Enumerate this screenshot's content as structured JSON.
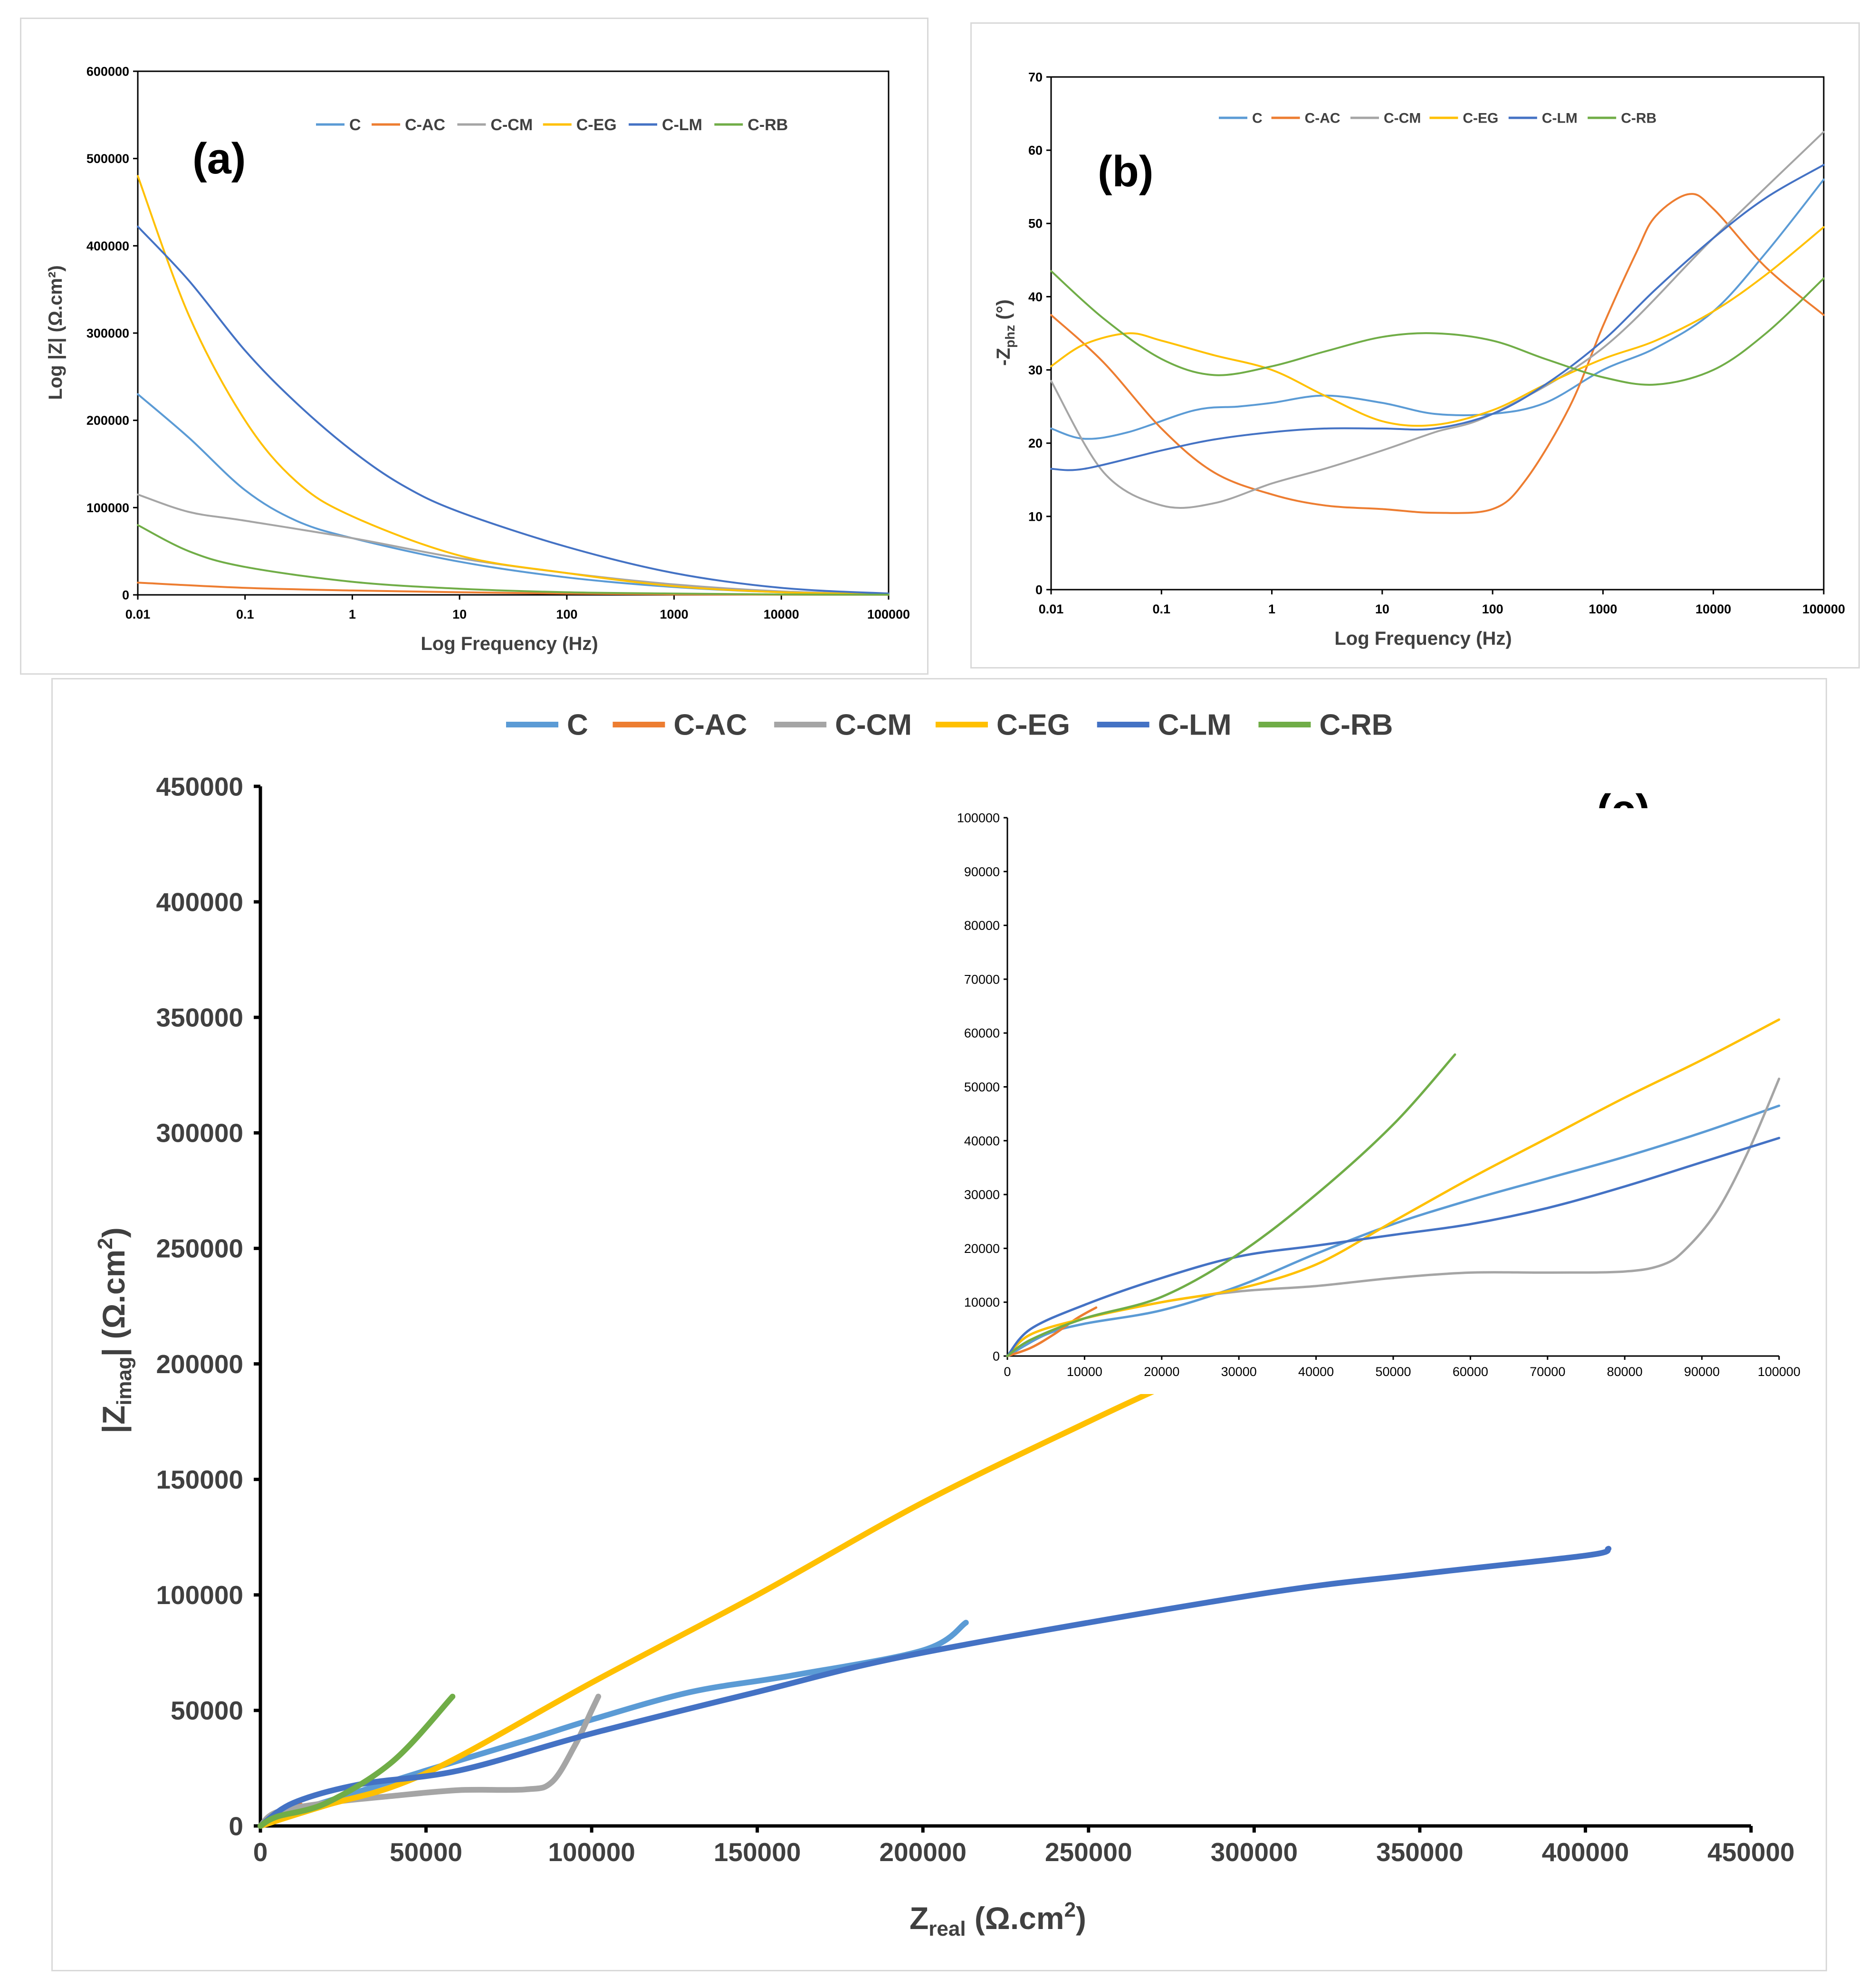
{
  "colors": {
    "C": "#5b9bd5",
    "C-AC": "#ed7d31",
    "C-CM": "#a5a5a5",
    "C-EG": "#ffc000",
    "C-LM": "#4472c4",
    "C-RB": "#70ad47"
  },
  "chart_data": [
    {
      "id": "a",
      "type": "line",
      "panel_label": "(a)",
      "title": "",
      "xlabel": "Log Frequency (Hz)",
      "ylabel": "Log |Z| (Ω.cm²)",
      "xscale": "log",
      "xlim": [
        0.01,
        100000
      ],
      "ylim": [
        0,
        600000
      ],
      "xticks": [
        "0.01",
        "0.1",
        "1",
        "10",
        "100",
        "1000",
        "10000",
        "100000"
      ],
      "yticks": [
        "0",
        "100000",
        "200000",
        "300000",
        "400000",
        "500000",
        "600000"
      ],
      "legend": [
        "C",
        "C-AC",
        "C-CM",
        "C-EG",
        "C-LM",
        "C-RB"
      ],
      "legend_position": "top",
      "grid": false,
      "series": [
        {
          "name": "C",
          "x": [
            0.01,
            0.03,
            0.1,
            0.3,
            1,
            10,
            100,
            1000,
            10000,
            100000
          ],
          "values": [
            230000,
            180000,
            120000,
            85000,
            65000,
            38000,
            20000,
            9000,
            3000,
            1000
          ]
        },
        {
          "name": "C-AC",
          "x": [
            0.01,
            0.1,
            1,
            10,
            100,
            1000,
            10000,
            100000
          ],
          "values": [
            14000,
            8000,
            5000,
            3000,
            1500,
            500,
            200,
            100
          ]
        },
        {
          "name": "C-CM",
          "x": [
            0.01,
            0.03,
            0.1,
            1,
            10,
            100,
            1000,
            10000,
            100000
          ],
          "values": [
            115000,
            95000,
            85000,
            65000,
            42000,
            25000,
            12000,
            4000,
            1000
          ]
        },
        {
          "name": "C-EG",
          "x": [
            0.01,
            0.03,
            0.1,
            0.3,
            1,
            10,
            100,
            1000,
            10000,
            100000
          ],
          "values": [
            480000,
            320000,
            200000,
            130000,
            90000,
            45000,
            25000,
            10000,
            3000,
            1000
          ]
        },
        {
          "name": "C-LM",
          "x": [
            0.01,
            0.03,
            0.1,
            0.3,
            1,
            3,
            10,
            100,
            1000,
            10000,
            100000
          ],
          "values": [
            422000,
            360000,
            280000,
            220000,
            165000,
            125000,
            95000,
            55000,
            25000,
            8000,
            1500
          ]
        },
        {
          "name": "C-RB",
          "x": [
            0.01,
            0.03,
            0.1,
            1,
            10,
            100,
            1000,
            10000,
            100000
          ],
          "values": [
            80000,
            50000,
            32000,
            15000,
            7000,
            3000,
            1500,
            500,
            200
          ]
        }
      ]
    },
    {
      "id": "b",
      "type": "line",
      "panel_label": "(b)",
      "title": "",
      "xlabel": "Log Frequency (Hz)",
      "ylabel": "-Z",
      "ylabel_sub": "phz",
      "ylabel_unit": " (°)",
      "xscale": "log",
      "xlim": [
        0.01,
        100000
      ],
      "ylim": [
        0,
        70
      ],
      "xticks": [
        "0.01",
        "0.1",
        "1",
        "10",
        "100",
        "1000",
        "10000",
        "100000"
      ],
      "yticks": [
        "0",
        "10",
        "20",
        "30",
        "40",
        "50",
        "60",
        "70"
      ],
      "legend": [
        "C",
        "C-AC",
        "C-CM",
        "C-EG",
        "C-LM",
        "C-RB"
      ],
      "legend_position": "top",
      "grid": false,
      "series": [
        {
          "name": "C",
          "x": [
            0.01,
            0.02,
            0.05,
            0.2,
            0.5,
            1,
            3,
            10,
            30,
            100,
            300,
            1000,
            3000,
            10000,
            30000,
            100000
          ],
          "values": [
            22,
            20.6,
            21.5,
            24.5,
            25,
            25.5,
            26.5,
            25.5,
            24,
            24,
            25.5,
            30,
            33,
            38,
            46,
            56
          ]
        },
        {
          "name": "C-AC",
          "x": [
            0.01,
            0.03,
            0.1,
            0.3,
            1,
            3,
            10,
            30,
            100,
            200,
            500,
            1000,
            2000,
            3000,
            6000,
            10000,
            30000,
            100000
          ],
          "values": [
            37.5,
            31,
            22,
            16,
            13,
            11.5,
            11,
            10.5,
            11,
            15,
            25,
            36,
            46,
            51,
            54,
            52,
            44,
            37.5
          ]
        },
        {
          "name": "C-CM",
          "x": [
            0.01,
            0.03,
            0.1,
            0.3,
            1,
            3,
            10,
            30,
            100,
            1000,
            10000,
            100000
          ],
          "values": [
            28.5,
            16,
            11.5,
            11.8,
            14.5,
            16.5,
            19,
            21.5,
            24,
            33,
            48,
            62.5
          ]
        },
        {
          "name": "C-EG",
          "x": [
            0.01,
            0.02,
            0.05,
            0.1,
            0.3,
            1,
            3,
            10,
            30,
            100,
            300,
            1000,
            3000,
            10000,
            30000,
            100000
          ],
          "values": [
            30.5,
            33.5,
            35,
            34,
            32,
            30,
            26.5,
            23,
            22.5,
            24.5,
            28,
            31.5,
            34,
            38,
            43,
            49.5
          ]
        },
        {
          "name": "C-LM",
          "x": [
            0.01,
            0.02,
            0.1,
            0.3,
            1,
            3,
            10,
            30,
            100,
            300,
            1000,
            3000,
            10000,
            30000,
            100000
          ],
          "values": [
            16.5,
            16.5,
            19,
            20.5,
            21.5,
            22,
            22,
            22,
            24,
            28,
            34,
            41,
            48,
            53.5,
            58
          ]
        },
        {
          "name": "C-RB",
          "x": [
            0.01,
            0.03,
            0.1,
            0.3,
            1,
            3,
            10,
            30,
            100,
            300,
            1000,
            3000,
            10000,
            30000,
            100000
          ],
          "values": [
            43.5,
            37,
            31.5,
            29.3,
            30.5,
            32.5,
            34.5,
            35,
            34,
            31.5,
            29,
            28,
            30,
            35,
            42.5
          ]
        }
      ]
    },
    {
      "id": "c",
      "type": "line",
      "panel_label": "(c)",
      "title": "",
      "xlabel": "Z",
      "xlabel_sub": "real",
      "xlabel_unit": " (Ω.cm",
      "xlabel_sup": "2",
      "xlabel_close": ")",
      "ylabel": "|Z",
      "ylabel_sub": "imag",
      "ylabel_unit": "| (Ω.cm",
      "ylabel_sup": "2",
      "ylabel_close": ")",
      "xlim": [
        0,
        450000
      ],
      "ylim": [
        0,
        450000
      ],
      "xticks": [
        "0",
        "50000",
        "100000",
        "150000",
        "200000",
        "250000",
        "300000",
        "350000",
        "400000",
        "450000"
      ],
      "yticks": [
        "0",
        "50000",
        "100000",
        "150000",
        "200000",
        "250000",
        "300000",
        "350000",
        "400000",
        "450000"
      ],
      "legend": [
        "C",
        "C-AC",
        "C-CM",
        "C-EG",
        "C-LM",
        "C-RB"
      ],
      "legend_position": "top",
      "grid": false,
      "series": [
        {
          "name": "C",
          "x": [
            0,
            10000,
            30000,
            50000,
            80000,
            100000,
            130000,
            160000,
            200000,
            213000
          ],
          "values": [
            0,
            6000,
            15000,
            24000,
            37000,
            46000,
            58000,
            65000,
            76000,
            88000
          ]
        },
        {
          "name": "C-AC",
          "x": [
            0,
            4000,
            8000,
            12000
          ],
          "values": [
            0,
            2000,
            6000,
            9000
          ]
        },
        {
          "name": "C-CM",
          "x": [
            0,
            5000,
            20000,
            40000,
            60000,
            80000,
            88000,
            95000,
            100000,
            102000
          ],
          "values": [
            0,
            6000,
            10000,
            13000,
            15500,
            15800,
            19000,
            35000,
            50000,
            56000
          ]
        },
        {
          "name": "C-EG",
          "x": [
            0,
            20000,
            40000,
            60000,
            100000,
            150000,
            200000,
            250000,
            280000
          ],
          "values": [
            0,
            9000,
            17000,
            30000,
            62000,
            100000,
            140000,
            175000,
            195000
          ]
        },
        {
          "name": "C-LM",
          "x": [
            0,
            10000,
            30000,
            60000,
            100000,
            150000,
            200000,
            300000,
            350000,
            400000,
            407000
          ],
          "values": [
            0,
            10000,
            18000,
            24000,
            40000,
            58000,
            75000,
            100000,
            109000,
            117000,
            120000
          ]
        },
        {
          "name": "C-RB",
          "x": [
            0,
            5000,
            20000,
            40000,
            58000
          ],
          "values": [
            0,
            4000,
            10000,
            28000,
            56000
          ]
        }
      ]
    },
    {
      "id": "c-inset",
      "type": "line",
      "title": "",
      "xlim": [
        0,
        100000
      ],
      "ylim": [
        0,
        100000
      ],
      "xticks": [
        "0",
        "10000",
        "20000",
        "30000",
        "40000",
        "50000",
        "60000",
        "70000",
        "80000",
        "90000",
        "100000"
      ],
      "yticks": [
        "0",
        "10000",
        "20000",
        "30000",
        "40000",
        "50000",
        "60000",
        "70000",
        "80000",
        "90000",
        "100000"
      ],
      "grid": false,
      "series": [
        {
          "name": "C",
          "x": [
            0,
            5000,
            10000,
            20000,
            30000,
            40000,
            50000,
            60000,
            70000,
            80000,
            90000,
            100000
          ],
          "values": [
            0,
            4000,
            6000,
            8500,
            13000,
            19000,
            24500,
            29000,
            33000,
            37000,
            41500,
            46500
          ]
        },
        {
          "name": "C-AC",
          "x": [
            0,
            3000,
            6000,
            9000,
            11500
          ],
          "values": [
            0,
            1500,
            4000,
            7000,
            9000
          ]
        },
        {
          "name": "C-CM",
          "x": [
            0,
            3000,
            10000,
            20000,
            30000,
            40000,
            50000,
            60000,
            70000,
            80000,
            85000,
            88000,
            92000,
            96000,
            100000
          ],
          "values": [
            0,
            4000,
            7000,
            10000,
            12000,
            13000,
            14500,
            15500,
            15500,
            15700,
            17000,
            20000,
            27000,
            38000,
            51500
          ]
        },
        {
          "name": "C-EG",
          "x": [
            0,
            3000,
            10000,
            20000,
            30000,
            40000,
            50000,
            60000,
            70000,
            80000,
            90000,
            100000
          ],
          "values": [
            0,
            4000,
            7000,
            10000,
            12500,
            17000,
            25000,
            33000,
            40500,
            48000,
            55000,
            62500
          ]
        },
        {
          "name": "C-LM",
          "x": [
            0,
            3000,
            10000,
            20000,
            30000,
            40000,
            50000,
            60000,
            70000,
            80000,
            90000,
            100000
          ],
          "values": [
            0,
            5000,
            9500,
            14500,
            18500,
            20500,
            22500,
            24500,
            27500,
            31500,
            36000,
            40500
          ]
        },
        {
          "name": "C-RB",
          "x": [
            0,
            3000,
            10000,
            20000,
            30000,
            40000,
            50000,
            58000
          ],
          "values": [
            0,
            3000,
            7000,
            11000,
            19000,
            30000,
            43000,
            56000
          ]
        }
      ]
    }
  ]
}
